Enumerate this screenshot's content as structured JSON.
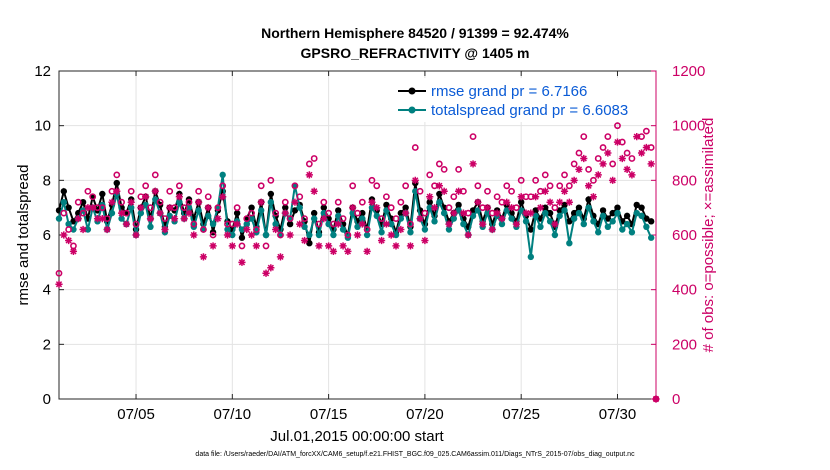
{
  "chart_data": {
    "type": "line",
    "title": [
      "Northern Hemisphere 84520 / 91399 = 92.474%",
      "GPSRO_REFRACTIVITY @ 1405 m"
    ],
    "xlabel": "Jul.01,2015 00:00:00 start",
    "ylabel_left": "rmse and totalspread",
    "ylabel_right": "# of obs: o=possible; ×=assimilated",
    "xlim": [
      1,
      32
    ],
    "ylim_left": [
      0,
      12
    ],
    "ylim_right": [
      0,
      1200
    ],
    "x_tick_values": [
      5,
      10,
      15,
      20,
      25,
      30
    ],
    "x_tick_labels": [
      "07/05",
      "07/10",
      "07/15",
      "07/20",
      "07/25",
      "07/30"
    ],
    "y_left_ticks": [
      0,
      2,
      4,
      6,
      8,
      10,
      12
    ],
    "y_right_ticks": [
      0,
      200,
      400,
      600,
      800,
      1000,
      1200
    ],
    "grid": true,
    "legend_position": "top-right",
    "series": [
      {
        "name": "rmse grand pr = 6.7166",
        "axis": "left",
        "color": "#000000",
        "marker": "filled-circle",
        "x": [
          1.0,
          1.25,
          1.5,
          1.75,
          2.0,
          2.25,
          2.5,
          2.75,
          3.0,
          3.25,
          3.5,
          3.75,
          4.0,
          4.25,
          4.5,
          4.75,
          5.0,
          5.25,
          5.5,
          5.75,
          6.0,
          6.25,
          6.5,
          6.75,
          7.0,
          7.25,
          7.5,
          7.75,
          8.0,
          8.25,
          8.5,
          8.75,
          9.0,
          9.25,
          9.5,
          9.75,
          10.0,
          10.25,
          10.5,
          10.75,
          11.0,
          11.25,
          11.5,
          11.75,
          12.0,
          12.25,
          12.5,
          12.75,
          13.0,
          13.25,
          13.5,
          13.75,
          14.0,
          14.25,
          14.5,
          14.75,
          15.0,
          15.25,
          15.5,
          15.75,
          16.0,
          16.25,
          16.5,
          16.75,
          17.0,
          17.25,
          17.5,
          17.75,
          18.0,
          18.25,
          18.5,
          18.75,
          19.0,
          19.25,
          19.5,
          19.75,
          20.0,
          20.25,
          20.5,
          20.75,
          21.0,
          21.25,
          21.5,
          21.75,
          22.0,
          22.25,
          22.5,
          22.75,
          23.0,
          23.25,
          23.5,
          23.75,
          24.0,
          24.25,
          24.5,
          24.75,
          25.0,
          25.25,
          25.5,
          25.75,
          26.0,
          26.25,
          26.5,
          26.75,
          27.0,
          27.25,
          27.5,
          27.75,
          28.0,
          28.25,
          28.5,
          28.75,
          29.0,
          29.25,
          29.5,
          29.75,
          30.0,
          30.25,
          30.5,
          30.75,
          31.0,
          31.25,
          31.5,
          31.75
        ],
        "y": [
          6.9,
          7.6,
          7.0,
          6.5,
          6.8,
          7.2,
          6.6,
          7.4,
          6.9,
          7.5,
          6.5,
          7.1,
          7.9,
          7.0,
          6.8,
          7.3,
          6.2,
          7.0,
          7.4,
          6.6,
          7.6,
          7.1,
          6.3,
          7.0,
          6.9,
          7.5,
          6.8,
          7.3,
          6.6,
          7.2,
          6.4,
          7.0,
          6.1,
          6.9,
          7.6,
          6.5,
          6.2,
          6.8,
          5.9,
          6.6,
          7.0,
          6.3,
          7.2,
          6.0,
          7.5,
          6.7,
          6.2,
          7.0,
          6.4,
          6.9,
          7.1,
          6.5,
          5.7,
          6.8,
          6.1,
          7.0,
          6.6,
          6.2,
          6.9,
          6.4,
          6.0,
          7.0,
          6.5,
          6.8,
          6.2,
          7.3,
          6.9,
          6.4,
          7.1,
          6.6,
          6.1,
          6.8,
          7.0,
          6.3,
          7.9,
          6.9,
          6.4,
          7.2,
          6.7,
          7.5,
          7.0,
          6.5,
          6.8,
          7.1,
          6.6,
          6.3,
          6.9,
          7.2,
          6.5,
          7.0,
          6.4,
          6.9,
          6.6,
          7.1,
          6.8,
          6.5,
          7.2,
          6.7,
          6.2,
          6.9,
          6.6,
          7.0,
          6.8,
          6.3,
          6.9,
          7.1,
          6.5,
          6.8,
          7.0,
          6.6,
          7.3,
          6.7,
          6.4,
          6.9,
          6.6,
          6.8,
          7.0,
          6.5,
          6.7,
          6.4,
          7.1,
          7.0,
          6.6,
          6.5
        ]
      },
      {
        "name": "totalspread grand pr = 6.6083",
        "axis": "left",
        "color": "#008080",
        "marker": "filled-circle",
        "x": [
          1.0,
          1.25,
          1.5,
          1.75,
          2.0,
          2.25,
          2.5,
          2.75,
          3.0,
          3.25,
          3.5,
          3.75,
          4.0,
          4.25,
          4.5,
          4.75,
          5.0,
          5.25,
          5.5,
          5.75,
          6.0,
          6.25,
          6.5,
          6.75,
          7.0,
          7.25,
          7.5,
          7.75,
          8.0,
          8.25,
          8.5,
          8.75,
          9.0,
          9.25,
          9.5,
          9.75,
          10.0,
          10.25,
          10.5,
          10.75,
          11.0,
          11.25,
          11.5,
          11.75,
          12.0,
          12.25,
          12.5,
          12.75,
          13.0,
          13.25,
          13.5,
          13.75,
          14.0,
          14.25,
          14.5,
          14.75,
          15.0,
          15.25,
          15.5,
          15.75,
          16.0,
          16.25,
          16.5,
          16.75,
          17.0,
          17.25,
          17.5,
          17.75,
          18.0,
          18.25,
          18.5,
          18.75,
          19.0,
          19.25,
          19.5,
          19.75,
          20.0,
          20.25,
          20.5,
          20.75,
          21.0,
          21.25,
          21.5,
          21.75,
          22.0,
          22.25,
          22.5,
          22.75,
          23.0,
          23.25,
          23.5,
          23.75,
          24.0,
          24.25,
          24.5,
          24.75,
          25.0,
          25.25,
          25.5,
          25.75,
          26.0,
          26.25,
          26.5,
          26.75,
          27.0,
          27.25,
          27.5,
          27.75,
          28.0,
          28.25,
          28.5,
          28.75,
          29.0,
          29.25,
          29.5,
          29.75,
          30.0,
          30.25,
          30.5,
          30.75,
          31.0,
          31.25,
          31.5,
          31.75
        ],
        "y": [
          6.6,
          7.2,
          6.4,
          6.2,
          6.6,
          6.9,
          6.2,
          7.0,
          6.5,
          7.1,
          6.2,
          6.8,
          7.5,
          6.6,
          6.4,
          7.0,
          6.0,
          6.8,
          7.1,
          6.3,
          7.3,
          6.8,
          6.1,
          6.7,
          6.5,
          7.2,
          6.6,
          7.0,
          6.3,
          6.9,
          6.2,
          6.7,
          6.4,
          7.0,
          8.2,
          6.2,
          6.0,
          6.5,
          6.2,
          6.4,
          6.6,
          6.1,
          6.9,
          6.0,
          7.2,
          6.4,
          6.0,
          6.8,
          6.6,
          7.8,
          7.0,
          6.3,
          6.0,
          6.6,
          6.0,
          6.8,
          6.4,
          6.0,
          6.7,
          6.2,
          5.9,
          6.8,
          6.3,
          6.6,
          6.0,
          7.0,
          6.7,
          6.1,
          6.9,
          6.4,
          6.0,
          6.6,
          6.8,
          6.1,
          7.6,
          6.6,
          6.2,
          7.0,
          6.5,
          7.2,
          6.8,
          6.2,
          6.6,
          6.9,
          6.4,
          6.0,
          6.7,
          6.9,
          6.3,
          6.8,
          6.2,
          6.7,
          6.4,
          6.9,
          6.6,
          6.3,
          6.9,
          6.5,
          5.2,
          6.7,
          6.3,
          6.8,
          6.5,
          6.0,
          6.7,
          6.9,
          5.7,
          6.6,
          6.8,
          6.4,
          7.0,
          6.5,
          6.1,
          6.7,
          6.3,
          6.5,
          6.8,
          6.2,
          6.4,
          6.1,
          6.8,
          6.7,
          6.3,
          5.9
        ]
      },
      {
        "name": "possible obs",
        "axis": "right",
        "color": "#cc0066",
        "marker": "open-circle",
        "x": [
          1.0,
          1.25,
          1.5,
          1.75,
          2.0,
          2.25,
          2.5,
          2.75,
          3.0,
          3.25,
          3.5,
          3.75,
          4.0,
          4.25,
          4.5,
          4.75,
          5.0,
          5.25,
          5.5,
          5.75,
          6.0,
          6.25,
          6.5,
          6.75,
          7.0,
          7.25,
          7.5,
          7.75,
          8.0,
          8.25,
          8.5,
          8.75,
          9.0,
          9.25,
          9.5,
          9.75,
          10.0,
          10.25,
          10.5,
          10.75,
          11.0,
          11.25,
          11.5,
          11.75,
          12.0,
          12.25,
          12.5,
          12.75,
          13.0,
          13.25,
          13.5,
          13.75,
          14.0,
          14.25,
          14.5,
          14.75,
          15.0,
          15.25,
          15.5,
          15.75,
          16.0,
          16.25,
          16.5,
          16.75,
          17.0,
          17.25,
          17.5,
          17.75,
          18.0,
          18.25,
          18.5,
          18.75,
          19.0,
          19.25,
          19.5,
          19.75,
          20.0,
          20.25,
          20.5,
          20.75,
          21.0,
          21.25,
          21.5,
          21.75,
          22.0,
          22.25,
          22.5,
          22.75,
          23.0,
          23.25,
          23.5,
          23.75,
          24.0,
          24.25,
          24.5,
          24.75,
          25.0,
          25.25,
          25.5,
          25.75,
          26.0,
          26.25,
          26.5,
          26.75,
          27.0,
          27.25,
          27.5,
          27.75,
          28.0,
          28.25,
          28.5,
          28.75,
          29.0,
          29.25,
          29.5,
          29.75,
          30.0,
          30.25,
          30.5,
          30.75,
          31.0,
          31.25,
          31.5,
          31.75,
          32.0
        ],
        "y": [
          460,
          680,
          620,
          560,
          720,
          680,
          760,
          740,
          700,
          700,
          660,
          760,
          820,
          720,
          680,
          760,
          640,
          740,
          780,
          700,
          820,
          720,
          660,
          760,
          700,
          780,
          700,
          720,
          640,
          760,
          620,
          740,
          600,
          700,
          780,
          640,
          640,
          700,
          560,
          660,
          680,
          620,
          780,
          560,
          800,
          680,
          600,
          720,
          660,
          780,
          740,
          660,
          860,
          880,
          640,
          720,
          680,
          640,
          720,
          660,
          600,
          780,
          680,
          720,
          620,
          800,
          780,
          660,
          740,
          700,
          660,
          720,
          780,
          640,
          920,
          760,
          680,
          820,
          780,
          860,
          840,
          700,
          740,
          840,
          760,
          680,
          960,
          780,
          700,
          760,
          680,
          740,
          720,
          780,
          760,
          700,
          800,
          740,
          740,
          800,
          760,
          820,
          780,
          700,
          780,
          820,
          780,
          860,
          900,
          960,
          840,
          800,
          880,
          920,
          960,
          860,
          1000,
          940,
          900,
          880,
          1040,
          960,
          980,
          920,
          0
        ]
      },
      {
        "name": "assimilated obs",
        "axis": "right",
        "color": "#cc0066",
        "marker": "asterisk",
        "x": [
          1.0,
          1.25,
          1.5,
          1.75,
          2.0,
          2.25,
          2.5,
          2.75,
          3.0,
          3.25,
          3.5,
          3.75,
          4.0,
          4.25,
          4.5,
          4.75,
          5.0,
          5.25,
          5.5,
          5.75,
          6.0,
          6.25,
          6.5,
          6.75,
          7.0,
          7.25,
          7.5,
          7.75,
          8.0,
          8.25,
          8.5,
          8.75,
          9.0,
          9.25,
          9.5,
          9.75,
          10.0,
          10.25,
          10.5,
          10.75,
          11.0,
          11.25,
          11.5,
          11.75,
          12.0,
          12.25,
          12.5,
          12.75,
          13.0,
          13.25,
          13.5,
          13.75,
          14.0,
          14.25,
          14.5,
          14.75,
          15.0,
          15.25,
          15.5,
          15.75,
          16.0,
          16.25,
          16.5,
          16.75,
          17.0,
          17.25,
          17.5,
          17.75,
          18.0,
          18.25,
          18.5,
          18.75,
          19.0,
          19.25,
          19.5,
          19.75,
          20.0,
          20.25,
          20.5,
          20.75,
          21.0,
          21.25,
          21.5,
          21.75,
          22.0,
          22.25,
          22.5,
          22.75,
          23.0,
          23.25,
          23.5,
          23.75,
          24.0,
          24.25,
          24.5,
          24.75,
          25.0,
          25.25,
          25.5,
          25.75,
          26.0,
          26.25,
          26.5,
          26.75,
          27.0,
          27.25,
          27.5,
          27.75,
          28.0,
          28.25,
          28.5,
          28.75,
          29.0,
          29.25,
          29.5,
          29.75,
          30.0,
          30.25,
          30.5,
          30.75,
          31.0,
          31.25,
          31.5,
          31.75,
          32.0
        ],
        "y": [
          420,
          600,
          580,
          540,
          660,
          620,
          700,
          700,
          660,
          660,
          620,
          720,
          760,
          680,
          640,
          720,
          600,
          700,
          740,
          660,
          760,
          680,
          620,
          700,
          660,
          740,
          660,
          680,
          600,
          720,
          520,
          700,
          560,
          660,
          740,
          600,
          560,
          640,
          500,
          620,
          600,
          560,
          720,
          460,
          480,
          620,
          520,
          680,
          600,
          720,
          640,
          580,
          820,
          760,
          560,
          660,
          560,
          540,
          640,
          560,
          540,
          700,
          600,
          640,
          540,
          720,
          700,
          580,
          640,
          600,
          560,
          620,
          680,
          560,
          800,
          660,
          580,
          740,
          700,
          780,
          760,
          640,
          680,
          760,
          680,
          600,
          860,
          720,
          640,
          700,
          620,
          680,
          660,
          720,
          700,
          640,
          740,
          680,
          680,
          740,
          700,
          760,
          720,
          640,
          720,
          760,
          720,
          800,
          840,
          880,
          780,
          740,
          820,
          860,
          900,
          800,
          940,
          880,
          840,
          820,
          960,
          900,
          920,
          860,
          0
        ]
      }
    ]
  },
  "footer": "data file: /Users/raeder/DAI/ATM_forcXX/CAM6_setup/f.e21.FHIST_BGC.f09_025.CAM6assim.011/Diags_NTrS_2015-07/obs_diag_output.nc"
}
